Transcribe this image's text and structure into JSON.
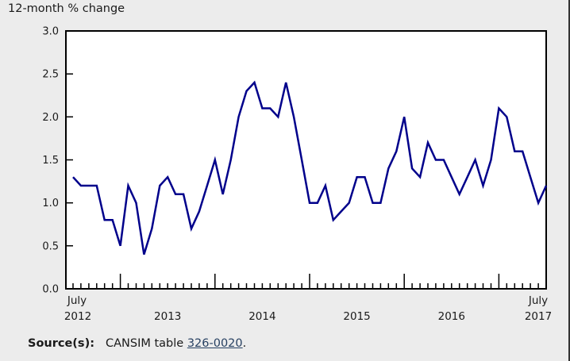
{
  "page": {
    "title": "12-month % change"
  },
  "source": {
    "label": "Source(s):",
    "text_before": "CANSIM table ",
    "link_text": "326-0020",
    "suffix": "."
  },
  "chart_data": {
    "type": "line",
    "title": "12-month % change",
    "xlabel": "",
    "ylabel": "",
    "ylim": [
      0.0,
      3.0
    ],
    "ytick_step": 0.5,
    "ytick_labels": [
      "3.0",
      "2.5",
      "2.0",
      "1.5",
      "1.0",
      "0.5",
      "0.0"
    ],
    "grid": false,
    "legend": false,
    "line_color": "#00008B",
    "plot_bg": "#ffffff",
    "frame_bg": "#ececec",
    "x_axis": {
      "first_line1": "July",
      "first_line2": "2012",
      "mid_years": [
        "2013",
        "2014",
        "2015",
        "2016"
      ],
      "last_line1": "July",
      "last_line2": "2017"
    },
    "x_months": [
      "2012-07",
      "2012-08",
      "2012-09",
      "2012-10",
      "2012-11",
      "2012-12",
      "2013-01",
      "2013-02",
      "2013-03",
      "2013-04",
      "2013-05",
      "2013-06",
      "2013-07",
      "2013-08",
      "2013-09",
      "2013-10",
      "2013-11",
      "2013-12",
      "2014-01",
      "2014-02",
      "2014-03",
      "2014-04",
      "2014-05",
      "2014-06",
      "2014-07",
      "2014-08",
      "2014-09",
      "2014-10",
      "2014-11",
      "2014-12",
      "2015-01",
      "2015-02",
      "2015-03",
      "2015-04",
      "2015-05",
      "2015-06",
      "2015-07",
      "2015-08",
      "2015-09",
      "2015-10",
      "2015-11",
      "2015-12",
      "2016-01",
      "2016-02",
      "2016-03",
      "2016-04",
      "2016-05",
      "2016-06",
      "2016-07",
      "2016-08",
      "2016-09",
      "2016-10",
      "2016-11",
      "2016-12",
      "2017-01",
      "2017-02",
      "2017-03",
      "2017-04",
      "2017-05",
      "2017-06",
      "2017-07"
    ],
    "values": [
      1.3,
      1.2,
      1.2,
      1.2,
      0.8,
      0.8,
      0.5,
      1.2,
      1.0,
      0.4,
      0.7,
      1.2,
      1.3,
      1.1,
      1.1,
      0.7,
      0.9,
      1.2,
      1.5,
      1.1,
      1.5,
      2.0,
      2.3,
      2.4,
      2.1,
      2.1,
      2.0,
      2.4,
      2.0,
      1.5,
      1.0,
      1.0,
      1.2,
      0.8,
      0.9,
      1.0,
      1.3,
      1.3,
      1.0,
      1.0,
      1.4,
      1.6,
      2.0,
      1.4,
      1.3,
      1.7,
      1.5,
      1.5,
      1.3,
      1.1,
      1.3,
      1.5,
      1.2,
      1.5,
      2.1,
      2.0,
      1.6,
      1.6,
      1.3,
      1.0,
      1.2
    ]
  }
}
